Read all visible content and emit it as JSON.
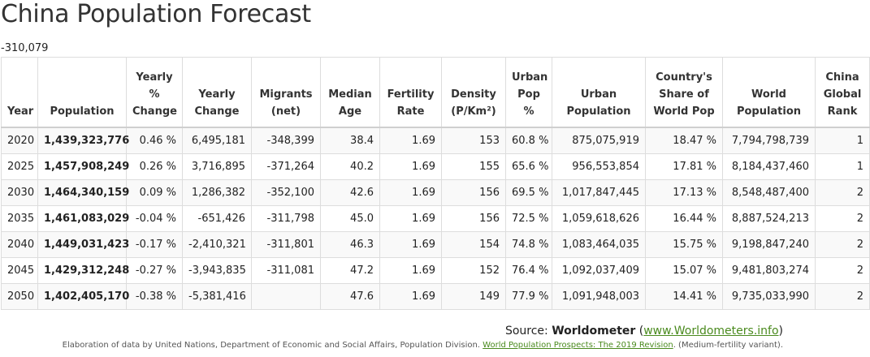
{
  "page_title": "China Population Forecast",
  "sub_value": "-310,079",
  "table": {
    "headers": {
      "year": "Year",
      "population": "Population",
      "yearly_pct_change": "Yearly % Change",
      "yearly_change": "Yearly Change",
      "migrants": "Migrants (net)",
      "median_age": "Median Age",
      "fertility_rate": "Fertility Rate",
      "density": "Density (P/Km²)",
      "urban_pop_pct": "Urban Pop %",
      "urban_population": "Urban Population",
      "share_world_pop": "Country's Share of World Pop",
      "world_population": "World Population",
      "global_rank": "China Global Rank"
    },
    "rows": [
      {
        "year": "2020",
        "population": "1,439,323,776",
        "yearly_pct_change": "0.46 %",
        "yearly_change": "6,495,181",
        "migrants": "-348,399",
        "median_age": "38.4",
        "fertility_rate": "1.69",
        "density": "153",
        "urban_pop_pct": "60.8 %",
        "urban_population": "875,075,919",
        "share_world_pop": "18.47 %",
        "world_population": "7,794,798,739",
        "global_rank": "1"
      },
      {
        "year": "2025",
        "population": "1,457,908,249",
        "yearly_pct_change": "0.26 %",
        "yearly_change": "3,716,895",
        "migrants": "-371,264",
        "median_age": "40.2",
        "fertility_rate": "1.69",
        "density": "155",
        "urban_pop_pct": "65.6 %",
        "urban_population": "956,553,854",
        "share_world_pop": "17.81 %",
        "world_population": "8,184,437,460",
        "global_rank": "1"
      },
      {
        "year": "2030",
        "population": "1,464,340,159",
        "yearly_pct_change": "0.09 %",
        "yearly_change": "1,286,382",
        "migrants": "-352,100",
        "median_age": "42.6",
        "fertility_rate": "1.69",
        "density": "156",
        "urban_pop_pct": "69.5 %",
        "urban_population": "1,017,847,445",
        "share_world_pop": "17.13 %",
        "world_population": "8,548,487,400",
        "global_rank": "2"
      },
      {
        "year": "2035",
        "population": "1,461,083,029",
        "yearly_pct_change": "-0.04 %",
        "yearly_change": "-651,426",
        "migrants": "-311,798",
        "median_age": "45.0",
        "fertility_rate": "1.69",
        "density": "156",
        "urban_pop_pct": "72.5 %",
        "urban_population": "1,059,618,626",
        "share_world_pop": "16.44 %",
        "world_population": "8,887,524,213",
        "global_rank": "2"
      },
      {
        "year": "2040",
        "population": "1,449,031,423",
        "yearly_pct_change": "-0.17 %",
        "yearly_change": "-2,410,321",
        "migrants": "-311,801",
        "median_age": "46.3",
        "fertility_rate": "1.69",
        "density": "154",
        "urban_pop_pct": "74.8 %",
        "urban_population": "1,083,464,035",
        "share_world_pop": "15.75 %",
        "world_population": "9,198,847,240",
        "global_rank": "2"
      },
      {
        "year": "2045",
        "population": "1,429,312,248",
        "yearly_pct_change": "-0.27 %",
        "yearly_change": "-3,943,835",
        "migrants": "-311,081",
        "median_age": "47.2",
        "fertility_rate": "1.69",
        "density": "152",
        "urban_pop_pct": "76.4 %",
        "urban_population": "1,092,037,409",
        "share_world_pop": "15.07 %",
        "world_population": "9,481,803,274",
        "global_rank": "2"
      },
      {
        "year": "2050",
        "population": "1,402,405,170",
        "yearly_pct_change": "-0.38 %",
        "yearly_change": "-5,381,416",
        "migrants": "",
        "median_age": "47.6",
        "fertility_rate": "1.69",
        "density": "149",
        "urban_pop_pct": "77.9 %",
        "urban_population": "1,091,948,003",
        "share_world_pop": "14.41 %",
        "world_population": "9,735,033,990",
        "global_rank": "2"
      }
    ]
  },
  "source": {
    "prefix": "Source: ",
    "name": "Worldometer",
    "open_paren": " (",
    "link_text": "www.Worldometers.info",
    "close_paren": ")"
  },
  "note": {
    "prefix": "Elaboration of data by United Nations, Department of Economic and Social Affairs, Population Division. ",
    "link_text": "World Population Prospects: The 2019 Revision",
    "suffix": ". (Medium-fertility variant)."
  },
  "colors": {
    "link": "#4a8a1e",
    "row_stripe": "#f9f9f9",
    "border": "#dddddd"
  }
}
